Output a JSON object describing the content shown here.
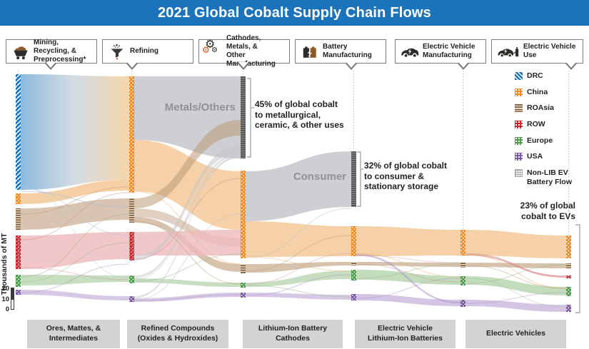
{
  "title": "2021 Global Cobalt Supply Chain Flows",
  "stages": [
    {
      "label": "Mining, Recycling, &\nPreprocessing*",
      "icon": "mine-cart-icon"
    },
    {
      "label": "Refining",
      "icon": "funnel-icon"
    },
    {
      "label": "Cathodes, Metals, &\nOther Manufacturing",
      "icon": "gears-icon"
    },
    {
      "label": "Battery\nManufacturing",
      "icon": "battery-icon"
    },
    {
      "label": "Electric Vehicle\nManufacturing",
      "icon": "ev-car-icon"
    },
    {
      "label": "Electric Vehicle\nUse",
      "icon": "ev-charging-icon"
    }
  ],
  "axis": {
    "label": "Thousands of MT",
    "ticks": [
      "20",
      "10",
      "0"
    ]
  },
  "legend": {
    "items": [
      {
        "label": "DRC",
        "color": "#1B75BC"
      },
      {
        "label": "China",
        "color": "#F5891F"
      },
      {
        "label": "ROAsia",
        "color": "#8A6239"
      },
      {
        "label": "ROW",
        "color": "#C9242B"
      },
      {
        "label": "Europe",
        "color": "#4A9E49"
      },
      {
        "label": "USA",
        "color": "#7C58A4"
      },
      {
        "label": "Non-LIB EV\nBattery Flow",
        "color": "#BCBEC0"
      }
    ]
  },
  "annotations": {
    "metals_label": "Metals/Others",
    "consumer_label": "Consumer",
    "pct45": "45% of global cobalt\nto metallurgical,\nceramic, & other uses",
    "pct32": "32% of global cobalt\nto consumer &\nstationary storage",
    "pct23": "23% of global\ncobalt to EVs"
  },
  "bottom_labels": [
    "Ores, Mattes, &\nIntermediates",
    "Refined Compounds\n(Oxides & Hydroxides)",
    "Lithium-Ion Battery\nCathodes",
    "Electric Vehicle\nLithium-Ion Batteries",
    "Electric Vehicles"
  ],
  "sankey": {
    "type": "sankey",
    "columns": [
      {
        "stage": "Ores, Mattes, & Intermediates",
        "nodes": [
          "DRC",
          "China",
          "ROAsia",
          "ROW",
          "Europe",
          "USA"
        ]
      },
      {
        "stage": "Refined Compounds (Oxides & Hydroxides)",
        "nodes": [
          "China",
          "ROAsia",
          "ROW",
          "Europe",
          "USA"
        ]
      },
      {
        "stage": "Lithium-Ion Battery Cathodes",
        "nodes": [
          "Metals/Others",
          "China",
          "ROAsia",
          "Europe",
          "USA"
        ]
      },
      {
        "stage": "Electric Vehicle Lithium-Ion Batteries",
        "nodes": [
          "Consumer",
          "China",
          "ROAsia",
          "Europe",
          "USA"
        ]
      },
      {
        "stage": "Electric Vehicles (Manufacturing)",
        "nodes": [
          "China",
          "ROAsia",
          "Europe",
          "USA"
        ]
      },
      {
        "stage": "Electric Vehicles (Use)",
        "nodes": [
          "China",
          "ROAsia",
          "ROW",
          "Europe",
          "USA"
        ]
      }
    ],
    "flows": [
      {
        "from": "DRC mining",
        "to": "China refining",
        "region": "DRC"
      },
      {
        "from": "China mining",
        "to": "China refining",
        "region": "China"
      },
      {
        "from": "ROAsia mining",
        "to": "ROAsia refining",
        "region": "ROAsia"
      },
      {
        "from": "ROW mining",
        "to": "ROW refining",
        "region": "ROW"
      },
      {
        "from": "Europe mining",
        "to": "Europe refining",
        "region": "Europe"
      },
      {
        "from": "USA mining",
        "to": "USA refining",
        "region": "USA"
      },
      {
        "from": "China refining",
        "to": "Metals/Others",
        "region": "Non-LIB"
      },
      {
        "from": "China refining",
        "to": "China cathodes",
        "region": "China"
      },
      {
        "from": "ROAsia refining",
        "to": "Metals/Others",
        "region": "ROAsia"
      },
      {
        "from": "ROAsia refining",
        "to": "China cathodes",
        "region": "ROAsia"
      },
      {
        "from": "ROAsia refining",
        "to": "ROAsia cathodes",
        "region": "ROAsia"
      },
      {
        "from": "ROW refining",
        "to": "China cathodes",
        "region": "ROW"
      },
      {
        "from": "ROW refining",
        "to": "Metals/Others",
        "region": "Non-LIB"
      },
      {
        "from": "Europe refining",
        "to": "Metals/Others",
        "region": "Non-LIB"
      },
      {
        "from": "Europe refining",
        "to": "Europe cathodes",
        "region": "Europe"
      },
      {
        "from": "USA refining",
        "to": "Metals/Others",
        "region": "Non-LIB"
      },
      {
        "from": "USA refining",
        "to": "USA cathodes",
        "region": "USA"
      },
      {
        "from": "China cathodes",
        "to": "Consumer",
        "region": "Non-LIB"
      },
      {
        "from": "China cathodes",
        "to": "China EV batteries",
        "region": "China"
      },
      {
        "from": "ROAsia cathodes",
        "to": "ROAsia EV batteries",
        "region": "ROAsia"
      },
      {
        "from": "Europe cathodes",
        "to": "Europe EV batteries",
        "region": "Europe"
      },
      {
        "from": "USA cathodes",
        "to": "USA EV batteries",
        "region": "USA"
      },
      {
        "from": "China EV batteries",
        "to": "China EV manufacturing",
        "region": "China"
      },
      {
        "from": "ROAsia EV batteries",
        "to": "ROAsia EV manufacturing",
        "region": "ROAsia"
      },
      {
        "from": "Europe EV batteries",
        "to": "Europe EV manufacturing",
        "region": "Europe"
      },
      {
        "from": "USA EV batteries",
        "to": "USA EV manufacturing",
        "region": "USA"
      },
      {
        "from": "China EV manufacturing",
        "to": "China EV use",
        "region": "China"
      },
      {
        "from": "ROAsia EV manufacturing",
        "to": "ROAsia EV use",
        "region": "ROAsia"
      },
      {
        "from": "Europe EV manufacturing",
        "to": "Europe EV use",
        "region": "Europe"
      },
      {
        "from": "USA EV manufacturing",
        "to": "USA EV use",
        "region": "USA"
      },
      {
        "from": "EV manufacturing",
        "to": "ROW EV use",
        "region": "ROW"
      }
    ],
    "shares": {
      "metals_others_pct": 45,
      "consumer_storage_pct": 32,
      "evs_pct": 23
    }
  }
}
